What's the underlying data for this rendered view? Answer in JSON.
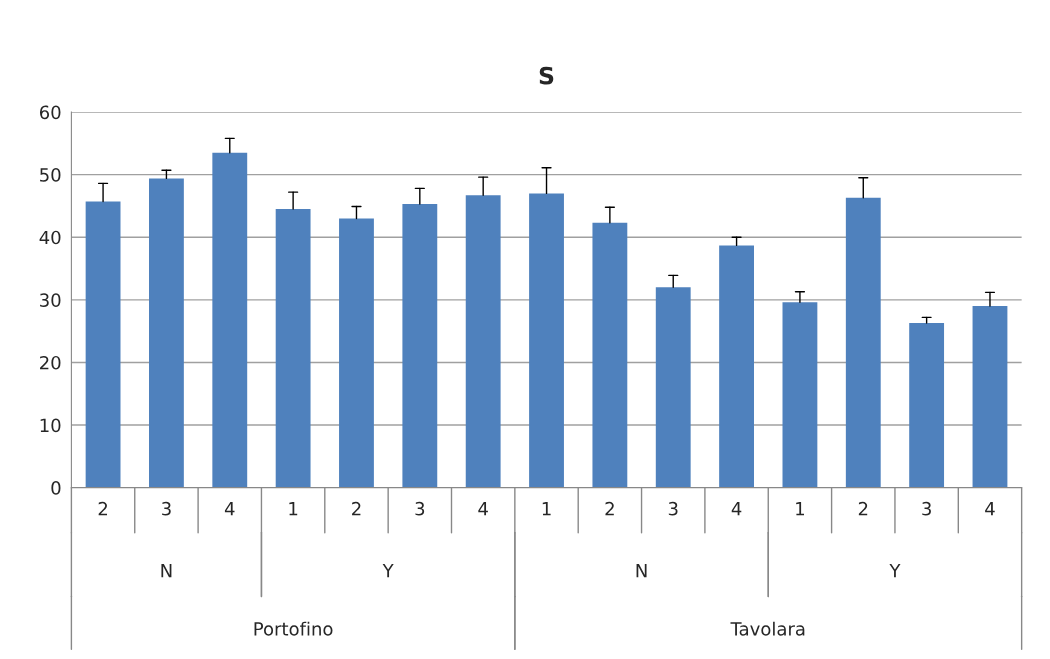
{
  "chart_data": {
    "type": "bar",
    "title": "S",
    "categories": [
      "2",
      "3",
      "4",
      "1",
      "2",
      "3",
      "4",
      "1",
      "2",
      "3",
      "4",
      "1",
      "2",
      "3",
      "4"
    ],
    "values": [
      45.7,
      49.4,
      53.5,
      44.5,
      43.0,
      45.3,
      46.7,
      47.0,
      42.3,
      32.0,
      38.7,
      29.6,
      46.3,
      26.3,
      29.0
    ],
    "errors": [
      [
        45.7,
        48.6
      ],
      [
        49.4,
        50.7
      ],
      [
        53.5,
        55.8
      ],
      [
        44.5,
        47.2
      ],
      [
        43.0,
        44.9
      ],
      [
        45.3,
        47.8
      ],
      [
        46.7,
        49.6
      ],
      [
        47.0,
        51.1
      ],
      [
        42.3,
        44.8
      ],
      [
        32.0,
        33.9
      ],
      [
        38.7,
        40.0
      ],
      [
        29.6,
        31.3
      ],
      [
        46.3,
        49.5
      ],
      [
        26.3,
        27.2
      ],
      [
        29.0,
        31.2
      ]
    ],
    "color": "#4f81bd",
    "ylim": [
      0,
      60
    ],
    "yticks": [
      0,
      10,
      20,
      30,
      40,
      50,
      60
    ],
    "grid": "y",
    "annotations": [
      "N",
      "Y",
      "N",
      "Y",
      "Portofino",
      "Tavolara"
    ]
  }
}
